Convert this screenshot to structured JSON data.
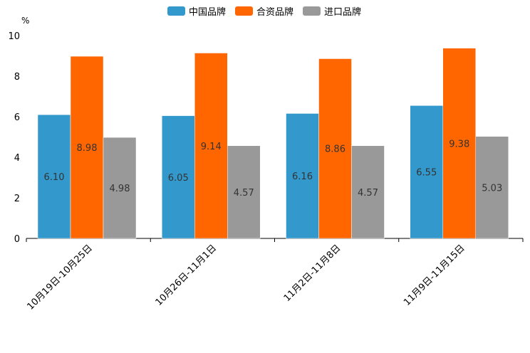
{
  "chart_data": {
    "type": "bar",
    "title": "",
    "ylabel": "%",
    "xlabel": "",
    "ylim": [
      0,
      10
    ],
    "yticks": [
      0,
      2,
      4,
      6,
      8,
      10
    ],
    "categories": [
      "10月19日-10月25日",
      "10月26日-11月1日",
      "11月2日-11月8日",
      "11月9日-11月15日"
    ],
    "series": [
      {
        "name": "中国品牌",
        "color": "#3399cc",
        "values": [
          6.1,
          6.05,
          6.16,
          6.55
        ],
        "labels": [
          "6.10",
          "6.05",
          "6.16",
          "6.55"
        ]
      },
      {
        "name": "合资品牌",
        "color": "#ff6600",
        "values": [
          8.98,
          9.14,
          8.86,
          9.38
        ],
        "labels": [
          "8.98",
          "9.14",
          "8.86",
          "9.38"
        ]
      },
      {
        "name": "进口品牌",
        "color": "#999999",
        "values": [
          4.98,
          4.57,
          4.57,
          5.03
        ],
        "labels": [
          "4.98",
          "4.57",
          "4.57",
          "5.03"
        ]
      }
    ],
    "legend_position": "top-center"
  }
}
